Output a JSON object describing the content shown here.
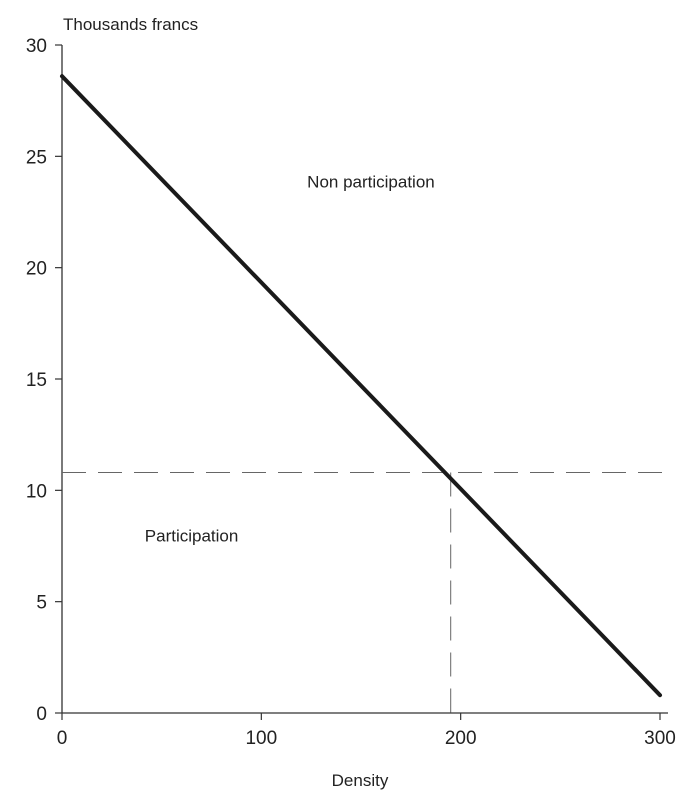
{
  "chart_data": {
    "type": "line",
    "title": "",
    "ylabel": "Thousands francs",
    "xlabel": "Density",
    "xlim": [
      0,
      300
    ],
    "ylim": [
      0,
      30
    ],
    "x_ticks": [
      0,
      100,
      200,
      300
    ],
    "x_tick_labels": [
      "0",
      "100",
      "200",
      "300"
    ],
    "y_ticks": [
      0,
      5,
      10,
      15,
      20,
      25,
      30
    ],
    "y_tick_labels": [
      "0",
      "5",
      "10",
      "15",
      "20",
      "25",
      "30"
    ],
    "grid": false,
    "series": [
      {
        "x": [
          0,
          300
        ],
        "y": [
          28.6,
          0.8
        ],
        "style": "solid",
        "color": "#1a1a1a"
      }
    ],
    "reference_lines": {
      "horizontal": {
        "y": 10.8,
        "style": "dashed"
      },
      "vertical": {
        "x": 195,
        "y_top": 10.8,
        "style": "dashed"
      }
    },
    "annotations": [
      {
        "text": "Non participation",
        "x": 155,
        "y": 23.6
      },
      {
        "text": "Participation",
        "x": 65,
        "y": 7.7
      }
    ]
  }
}
